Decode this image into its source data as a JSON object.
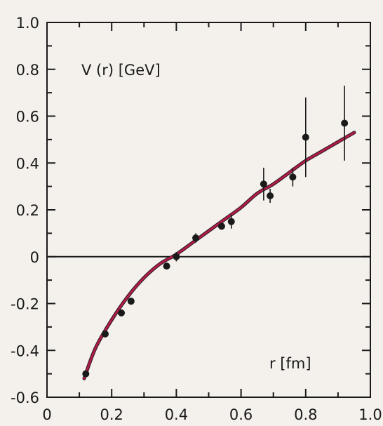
{
  "chart_data": {
    "type": "scatter",
    "title": "",
    "ylabel": "V (r) [GeV]",
    "xlabel": "r [fm]",
    "xlim": [
      0,
      1.0
    ],
    "ylim": [
      -0.6,
      1.0
    ],
    "x_ticks": [
      "0",
      "0.2",
      "0.4",
      "0.6",
      "0.8",
      "1.0"
    ],
    "y_ticks": [
      "1.0",
      "0.8",
      "0.6",
      "0.4",
      "0.2",
      "0",
      "-0.2",
      "-0.4",
      "-0.6"
    ],
    "x_tick_values": [
      0,
      0.2,
      0.4,
      0.6,
      0.8,
      1.0
    ],
    "y_tick_values": [
      1.0,
      0.8,
      0.6,
      0.4,
      0.2,
      0,
      -0.2,
      -0.4,
      -0.6
    ],
    "reference_line_y": 0,
    "curve_color": "#b01c4a",
    "point_color": "#1a1a1a",
    "fit_curve": {
      "x": [
        0.115,
        0.15,
        0.2,
        0.25,
        0.3,
        0.35,
        0.4,
        0.45,
        0.5,
        0.55,
        0.6,
        0.65,
        0.7,
        0.75,
        0.8,
        0.85,
        0.9,
        0.95
      ],
      "y": [
        -0.52,
        -0.39,
        -0.27,
        -0.17,
        -0.09,
        -0.03,
        0.01,
        0.06,
        0.11,
        0.16,
        0.21,
        0.27,
        0.31,
        0.36,
        0.41,
        0.45,
        0.49,
        0.53
      ]
    },
    "points": [
      {
        "x": 0.12,
        "y": -0.5,
        "err": 0.01
      },
      {
        "x": 0.18,
        "y": -0.33,
        "err": 0.01
      },
      {
        "x": 0.23,
        "y": -0.24,
        "err": 0.01
      },
      {
        "x": 0.26,
        "y": -0.19,
        "err": 0.01
      },
      {
        "x": 0.37,
        "y": -0.04,
        "err": 0.01
      },
      {
        "x": 0.4,
        "y": 0.0,
        "err": 0.02
      },
      {
        "x": 0.46,
        "y": 0.08,
        "err": 0.02
      },
      {
        "x": 0.54,
        "y": 0.13,
        "err": 0.015
      },
      {
        "x": 0.57,
        "y": 0.15,
        "err": 0.03
      },
      {
        "x": 0.67,
        "y": 0.31,
        "err": 0.07
      },
      {
        "x": 0.69,
        "y": 0.26,
        "err": 0.03
      },
      {
        "x": 0.76,
        "y": 0.34,
        "err": 0.04
      },
      {
        "x": 0.8,
        "y": 0.51,
        "err": 0.17
      },
      {
        "x": 0.92,
        "y": 0.57,
        "err": 0.16
      }
    ]
  }
}
